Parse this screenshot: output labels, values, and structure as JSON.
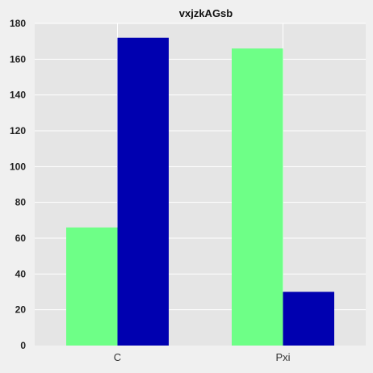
{
  "chart_data": {
    "type": "bar",
    "title": "vxjzkAGsb",
    "xlabel": "",
    "ylabel": "",
    "categories": [
      "C",
      "Pxi"
    ],
    "series": [
      {
        "color": "#6eff87",
        "values": [
          66,
          166
        ]
      },
      {
        "color": "#0000b0",
        "values": [
          172,
          30
        ]
      }
    ],
    "ylim": [
      0,
      180
    ],
    "yticks": [
      0,
      20,
      40,
      60,
      80,
      100,
      120,
      140,
      160,
      180
    ],
    "grid": true,
    "background": "#e5e5e5",
    "grid_color": "#ffffff"
  }
}
